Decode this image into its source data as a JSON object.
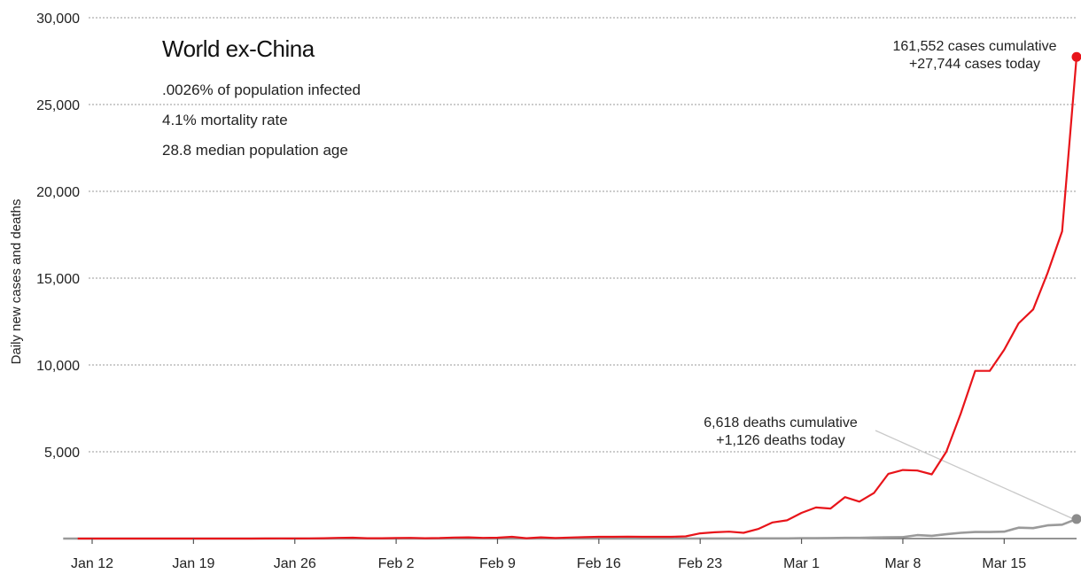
{
  "info": {
    "title": "World ex-China",
    "stats": [
      ".0026% of population infected",
      "4.1% mortality rate",
      "28.8 median population age"
    ]
  },
  "annotations": {
    "cases_line1": "161,552 cases cumulative",
    "cases_line2": "+27,744 cases today",
    "deaths_line1": "6,618 deaths cumulative",
    "deaths_line2": "+1,126 deaths today"
  },
  "colors": {
    "cases": "#e8141a",
    "deaths": "#9a9a9a",
    "deaths_marker": "#8c8c8c"
  },
  "chart_data": {
    "type": "line",
    "ylabel": "Daily new cases and deaths",
    "ylim": [
      0,
      30000
    ],
    "y_ticks": [
      0,
      5000,
      10000,
      15000,
      20000,
      25000,
      30000
    ],
    "y_tick_labels": [
      "",
      "5,000",
      "10,000",
      "15,000",
      "20,000",
      "25,000",
      "30,000"
    ],
    "x_ticks": [
      {
        "day": 0,
        "label": "Jan 12"
      },
      {
        "day": 7,
        "label": "Jan 19"
      },
      {
        "day": 14,
        "label": "Jan 26"
      },
      {
        "day": 21,
        "label": "Feb 2"
      },
      {
        "day": 28,
        "label": "Feb 9"
      },
      {
        "day": 35,
        "label": "Feb 16"
      },
      {
        "day": 42,
        "label": "Feb 23"
      },
      {
        "day": 49,
        "label": "Mar 1"
      },
      {
        "day": 56,
        "label": "Mar 8"
      },
      {
        "day": 63,
        "label": "Mar 15"
      }
    ],
    "x_domain": [
      0,
      68
    ],
    "grid": true,
    "series": [
      {
        "name": "cases",
        "values": [
          0,
          0,
          0,
          0,
          0,
          0,
          0,
          0,
          0,
          0,
          0,
          0,
          0,
          5,
          10,
          5,
          10,
          20,
          40,
          50,
          20,
          20,
          30,
          40,
          20,
          30,
          60,
          70,
          40,
          50,
          100,
          20,
          70,
          30,
          60,
          80,
          100,
          100,
          110,
          100,
          100,
          100,
          130,
          300,
          360,
          400,
          330,
          550,
          930,
          1050,
          1480,
          1790,
          1730,
          2390,
          2130,
          2620,
          3730,
          3950,
          3920,
          3700,
          5000,
          7200,
          9660,
          9660,
          10870,
          12400,
          13200,
          15300,
          17700,
          27744
        ]
      },
      {
        "name": "deaths",
        "values": [
          0,
          0,
          0,
          0,
          0,
          0,
          0,
          0,
          0,
          0,
          0,
          0,
          0,
          0,
          0,
          0,
          0,
          0,
          0,
          0,
          0,
          0,
          0,
          0,
          0,
          0,
          0,
          0,
          0,
          0,
          0,
          0,
          0,
          0,
          0,
          0,
          0,
          0,
          0,
          0,
          0,
          0,
          0,
          0,
          5,
          5,
          5,
          5,
          10,
          10,
          10,
          20,
          20,
          30,
          40,
          40,
          60,
          70,
          80,
          200,
          160,
          250,
          330,
          380,
          380,
          400,
          630,
          600,
          760,
          800,
          1126
        ]
      }
    ]
  }
}
